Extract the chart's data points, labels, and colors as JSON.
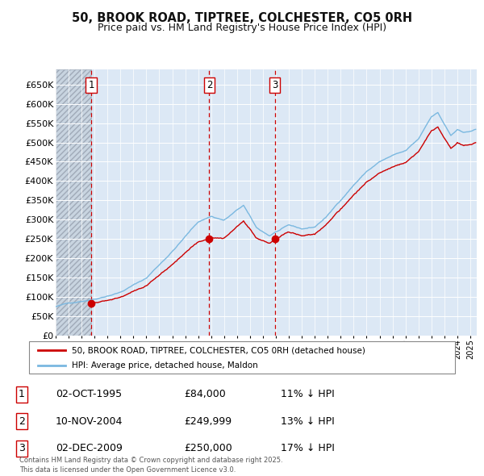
{
  "title1": "50, BROOK ROAD, TIPTREE, COLCHESTER, CO5 0RH",
  "title2": "Price paid vs. HM Land Registry's House Price Index (HPI)",
  "ylabel_ticks": [
    "£0",
    "£50K",
    "£100K",
    "£150K",
    "£200K",
    "£250K",
    "£300K",
    "£350K",
    "£400K",
    "£450K",
    "£500K",
    "£550K",
    "£600K",
    "£650K"
  ],
  "ytick_values": [
    0,
    50000,
    100000,
    150000,
    200000,
    250000,
    300000,
    350000,
    400000,
    450000,
    500000,
    550000,
    600000,
    650000
  ],
  "ylim": [
    0,
    690000
  ],
  "xlim_start": 1993.0,
  "xlim_end": 2025.5,
  "sale_dates": [
    1995.75,
    2004.86,
    2009.92
  ],
  "sale_prices": [
    84000,
    249999,
    250000
  ],
  "sale_labels": [
    "1",
    "2",
    "3"
  ],
  "hpi_color": "#7ab8e0",
  "price_color": "#cc0000",
  "vline_color": "#cc0000",
  "legend_label_red": "50, BROOK ROAD, TIPTREE, COLCHESTER, CO5 0RH (detached house)",
  "legend_label_blue": "HPI: Average price, detached house, Maldon",
  "table_rows": [
    [
      "1",
      "02-OCT-1995",
      "£84,000",
      "11% ↓ HPI"
    ],
    [
      "2",
      "10-NOV-2004",
      "£249,999",
      "13% ↓ HPI"
    ],
    [
      "3",
      "02-DEC-2009",
      "£250,000",
      "17% ↓ HPI"
    ]
  ],
  "footnote": "Contains HM Land Registry data © Crown copyright and database right 2025.\nThis data is licensed under the Open Government Licence v3.0.",
  "bg_color": "#ffffff",
  "plot_bg_color": "#dce8f5",
  "grid_color": "#ffffff",
  "hatch_area_color": "#c8d4e0"
}
